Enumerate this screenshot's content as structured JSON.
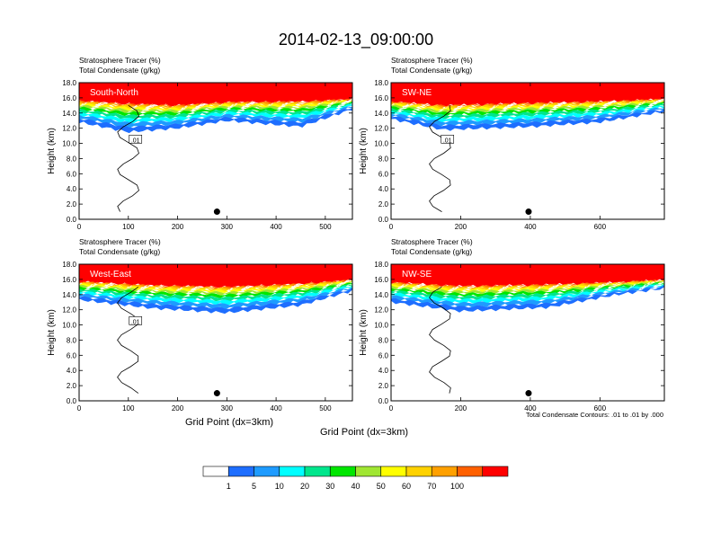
{
  "figure": {
    "title": "2014-02-13_09:00:00",
    "xlabel": "Grid Point (dx=3km)",
    "contour_note": "Total Condensate Contours: .01 to .01 by .000"
  },
  "colorbar": {
    "colors": [
      "#ffffff",
      "#1e6eff",
      "#1e9bff",
      "#00ffff",
      "#00e68c",
      "#00e600",
      "#a0e632",
      "#ffff00",
      "#ffd200",
      "#ffa000",
      "#ff6000",
      "#ff0000"
    ],
    "labels": [
      "1",
      "5",
      "10",
      "20",
      "30",
      "40",
      "50",
      "60",
      "70",
      "100"
    ]
  },
  "chart_data": [
    {
      "type": "heatmap",
      "panel": "South-North",
      "title_line1": "Stratosphere Tracer   (%)",
      "title_line2": "Total Condensate   (g/kg)",
      "ylabel": "Height (km)",
      "xlim": [
        0,
        555
      ],
      "ylim": [
        0,
        18
      ],
      "xticks": [
        0,
        100,
        200,
        300,
        400,
        500
      ],
      "yticks": [
        "0.0",
        "2.0",
        "4.0",
        "6.0",
        "8.0",
        "10.0",
        "12.0",
        "14.0",
        "16.0",
        "18.0"
      ],
      "marker_x": 280,
      "marker_height_km": 1.0,
      "contour_label": ".01",
      "tracer_profile": [
        {
          "x": 0,
          "top": 15.6,
          "bottom": 12.8
        },
        {
          "x": 100,
          "top": 15.2,
          "bottom": 11.5
        },
        {
          "x": 200,
          "top": 15.0,
          "bottom": 12.0
        },
        {
          "x": 300,
          "top": 15.4,
          "bottom": 13.0
        },
        {
          "x": 450,
          "top": 15.5,
          "bottom": 12.2
        },
        {
          "x": 555,
          "top": 15.8,
          "bottom": 14.5
        }
      ]
    },
    {
      "type": "heatmap",
      "panel": "SW-NE",
      "title_line1": "Stratosphere Tracer   (%)",
      "title_line2": "Total Condensate   (g/kg)",
      "ylabel": "Height (km)",
      "xlim": [
        0,
        785
      ],
      "ylim": [
        0,
        18
      ],
      "xticks": [
        0,
        200,
        400,
        600
      ],
      "yticks": [
        "0.0",
        "2.0",
        "4.0",
        "6.0",
        "8.0",
        "10.0",
        "12.0",
        "14.0",
        "16.0",
        "18.0"
      ],
      "marker_x": 395,
      "marker_height_km": 1.0,
      "contour_label": ".01",
      "tracer_profile": [
        {
          "x": 0,
          "top": 15.5,
          "bottom": 13.2
        },
        {
          "x": 150,
          "top": 15.0,
          "bottom": 11.8
        },
        {
          "x": 400,
          "top": 15.3,
          "bottom": 12.2
        },
        {
          "x": 600,
          "top": 15.5,
          "bottom": 12.8
        },
        {
          "x": 785,
          "top": 15.8,
          "bottom": 14.2
        }
      ]
    },
    {
      "type": "heatmap",
      "panel": "West-East",
      "title_line1": "Stratosphere Tracer   (%)",
      "title_line2": "Total Condensate   (g/kg)",
      "ylabel": "Height (km)",
      "xlim": [
        0,
        555
      ],
      "ylim": [
        0,
        18
      ],
      "xticks": [
        0,
        100,
        200,
        300,
        400,
        500
      ],
      "yticks": [
        "0.0",
        "2.0",
        "4.0",
        "6.0",
        "8.0",
        "10.0",
        "12.0",
        "14.0",
        "16.0",
        "18.0"
      ],
      "marker_x": 280,
      "marker_height_km": 1.0,
      "contour_label": ".01",
      "tracer_profile": [
        {
          "x": 0,
          "top": 15.7,
          "bottom": 13.3
        },
        {
          "x": 150,
          "top": 15.2,
          "bottom": 12.2
        },
        {
          "x": 300,
          "top": 15.0,
          "bottom": 11.6
        },
        {
          "x": 450,
          "top": 15.4,
          "bottom": 12.6
        },
        {
          "x": 555,
          "top": 15.9,
          "bottom": 14.5
        }
      ]
    },
    {
      "type": "heatmap",
      "panel": "NW-SE",
      "title_line1": "Stratosphere Tracer   (%)",
      "title_line2": "Total Condensate   (g/kg)",
      "ylabel": "Height (km)",
      "xlim": [
        0,
        785
      ],
      "ylim": [
        0,
        18
      ],
      "xticks": [
        0,
        200,
        400,
        600
      ],
      "yticks": [
        "0.0",
        "2.0",
        "4.0",
        "6.0",
        "8.0",
        "10.0",
        "12.0",
        "14.0",
        "16.0",
        "18.0"
      ],
      "marker_x": 395,
      "marker_height_km": 1.0,
      "contour_label": "",
      "tracer_profile": [
        {
          "x": 0,
          "top": 15.6,
          "bottom": 13.0
        },
        {
          "x": 200,
          "top": 15.1,
          "bottom": 11.8
        },
        {
          "x": 450,
          "top": 15.3,
          "bottom": 12.3
        },
        {
          "x": 650,
          "top": 15.6,
          "bottom": 14.0
        },
        {
          "x": 785,
          "top": 15.9,
          "bottom": 14.8
        }
      ]
    }
  ]
}
